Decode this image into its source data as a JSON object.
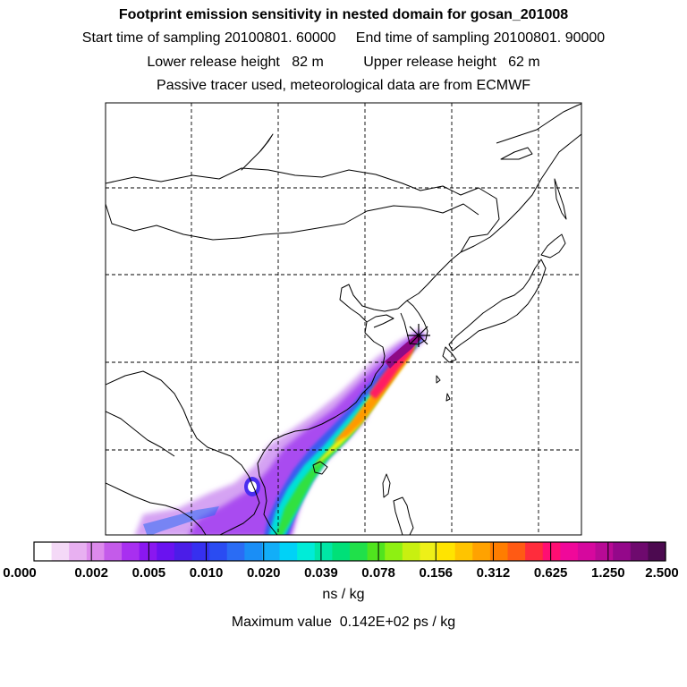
{
  "header": {
    "title": "Footprint emission sensitivity in nested domain for gosan_201008",
    "sampling_line": "Start time of sampling 20100801. 60000     End time of sampling 20100801. 90000",
    "height_line": "Lower release height   82 m          Upper release height   62 m",
    "tracer_line": "Passive tracer used, meteorological data are from ECMWF"
  },
  "map": {
    "site_marker": "gosan",
    "coastline_color": "#000000",
    "grid_line_style": "dashed"
  },
  "colorbar": {
    "tick_labels": [
      "0.000",
      "0.002",
      "0.005",
      "0.010",
      "0.020",
      "0.039",
      "0.078",
      "0.156",
      "0.312",
      "0.625",
      "1.250",
      "2.500"
    ],
    "units": "ns / kg",
    "colors": [
      "#ffffff",
      "#f4d9f7",
      "#e8b0f1",
      "#dd8aec",
      "#c45bea",
      "#a82ff0",
      "#8a17f0",
      "#6a12f0",
      "#4b1de8",
      "#3630f0",
      "#2a4cf2",
      "#2a6cf4",
      "#1a8ef6",
      "#12aef8",
      "#00d2f7",
      "#00ecd8",
      "#00e6a6",
      "#00e078",
      "#20e04a",
      "#50e41e",
      "#8ef012",
      "#c8f010",
      "#eef018",
      "#ffe400",
      "#ffc400",
      "#ffa200",
      "#ff7d00",
      "#ff5a14",
      "#ff2c3c",
      "#ff0e72",
      "#f0089a",
      "#d6089e",
      "#b80a95",
      "#94088a",
      "#6e0a6e",
      "#4c0a50"
    ]
  },
  "maximum": {
    "text": "Maximum value  0.142E+02 ps / kg"
  }
}
